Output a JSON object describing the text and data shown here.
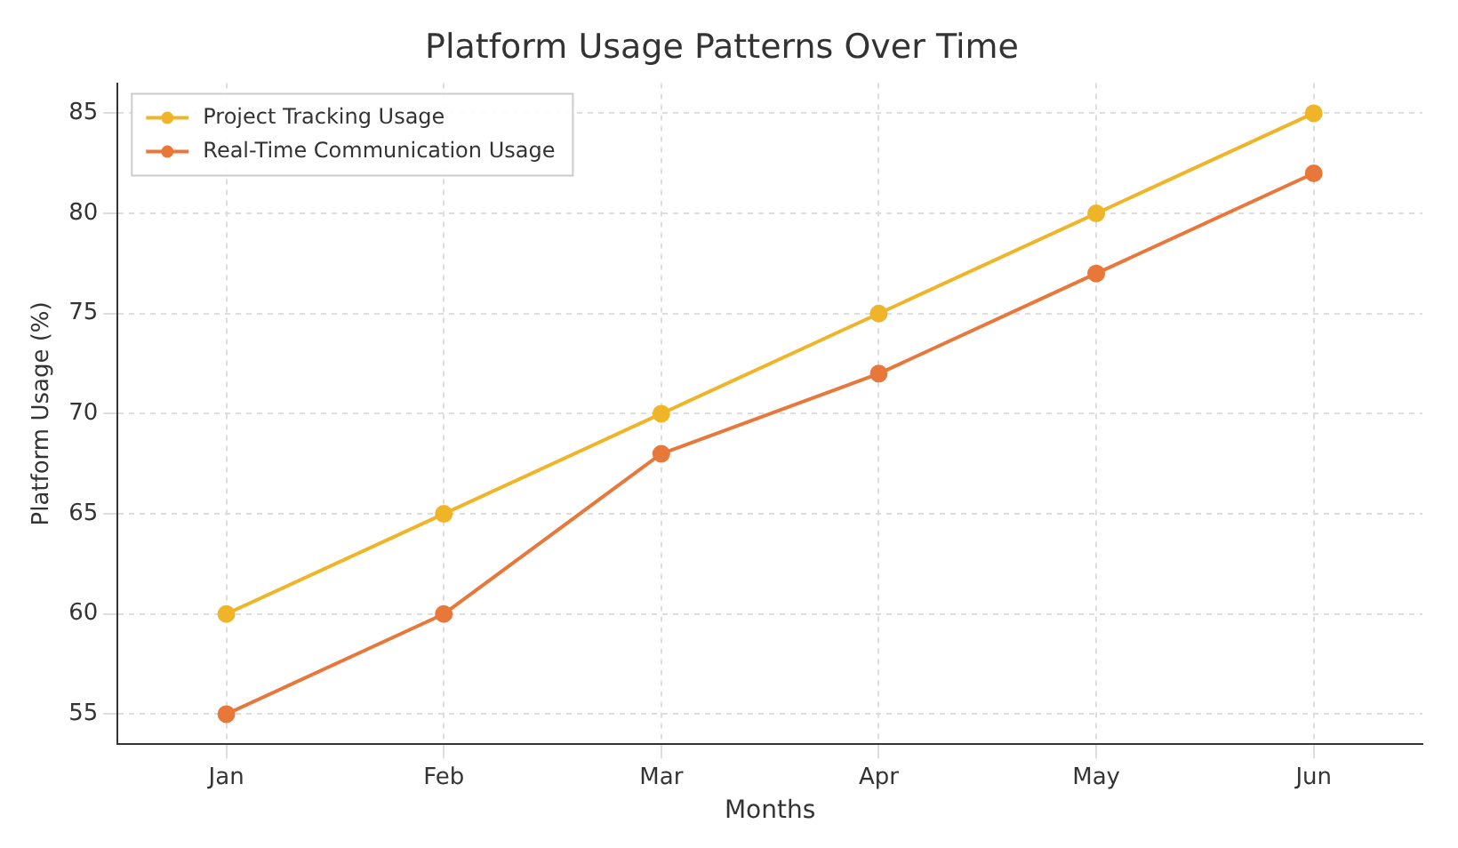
{
  "chart_data": {
    "type": "line",
    "title": "Platform Usage Patterns Over Time",
    "xlabel": "Months",
    "ylabel": "Platform Usage (%)",
    "categories": [
      "Jan",
      "Feb",
      "Mar",
      "Apr",
      "May",
      "Jun"
    ],
    "series": [
      {
        "name": "Project Tracking Usage",
        "color": "#f0b429",
        "values": [
          60,
          65,
          70,
          75,
          80,
          85
        ]
      },
      {
        "name": "Real-Time Communication Usage",
        "color": "#e8773a",
        "values": [
          55,
          60,
          68,
          72,
          77,
          82
        ]
      }
    ],
    "ylim": [
      53.5,
      86.5
    ],
    "yticks": [
      55,
      60,
      65,
      70,
      75,
      80,
      85
    ],
    "grid": true,
    "legend": "top left",
    "marker": "circle",
    "line_style": "solid"
  }
}
